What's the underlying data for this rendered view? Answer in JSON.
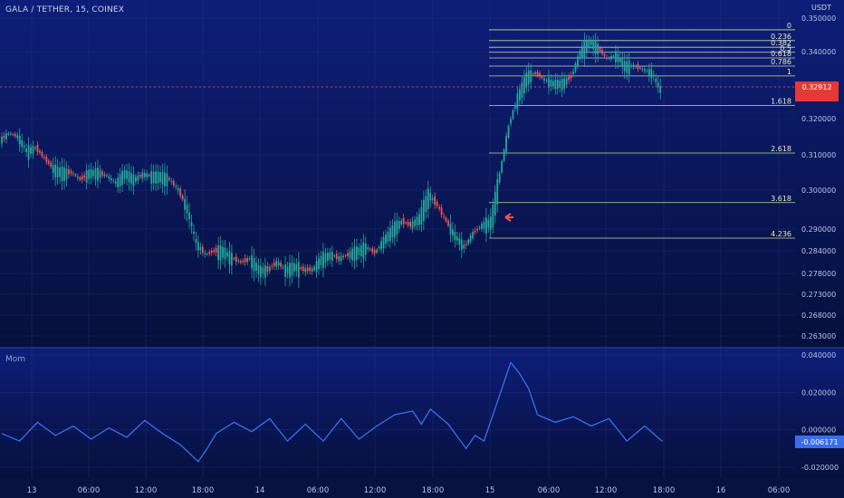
{
  "header": {
    "symbol_line": "GALA / TETHER, 15, COINEX",
    "currency": "USDT"
  },
  "indicator": {
    "name": "Mom"
  },
  "colors": {
    "bg_top": "#0e1e78",
    "bg_bottom": "#06103c",
    "up": "#26a69a",
    "down": "#ef5350",
    "fib": "#c8d8a0",
    "mom_line": "#3b6fe8",
    "mom_badge": "#3a6ee8",
    "price_badge": "#e53935"
  },
  "current_price_label": "0.32912",
  "momentum_value_label": "-0.006171",
  "chart_data": {
    "type": "candlestick",
    "title": "GALA / TETHER, 15, COINEX",
    "ylabel": "USDT",
    "y_axis_ticks": [
      "0.350000",
      "0.340000",
      "0.330000",
      "0.320000",
      "0.310000",
      "0.300000",
      "0.290000",
      "0.284000",
      "0.278000",
      "0.273000",
      "0.268000",
      "0.263000"
    ],
    "y_axis_values": [
      0.35,
      0.34,
      0.33,
      0.32,
      0.31,
      0.3,
      0.29,
      0.284,
      0.278,
      0.273,
      0.268,
      0.263
    ],
    "x_axis_ticks": [
      "13",
      "06:00",
      "12:00",
      "18:00",
      "14",
      "06:00",
      "12:00",
      "18:00",
      "15",
      "06:00",
      "12:00",
      "18:00",
      "16",
      "06:00"
    ],
    "fib_levels": [
      {
        "label": "0",
        "price": 0.3465
      },
      {
        "label": "0.236",
        "price": 0.3433
      },
      {
        "label": "0.382",
        "price": 0.3413
      },
      {
        "label": "0.5",
        "price": 0.3398
      },
      {
        "label": "0.618",
        "price": 0.3382
      },
      {
        "label": "0.786",
        "price": 0.3359
      },
      {
        "label": "1",
        "price": 0.3331
      },
      {
        "label": "1.618",
        "price": 0.3241
      },
      {
        "label": "2.618",
        "price": 0.3105
      },
      {
        "label": "3.618",
        "price": 0.2968
      },
      {
        "label": "4.236",
        "price": 0.2875
      }
    ],
    "price_path": [
      [
        0,
        0.314
      ],
      [
        4,
        0.316
      ],
      [
        8,
        0.315
      ],
      [
        12,
        0.311
      ],
      [
        16,
        0.312
      ],
      [
        20,
        0.309
      ],
      [
        24,
        0.306
      ],
      [
        28,
        0.305
      ],
      [
        32,
        0.305
      ],
      [
        36,
        0.303
      ],
      [
        40,
        0.305
      ],
      [
        44,
        0.305
      ],
      [
        48,
        0.304
      ],
      [
        52,
        0.302
      ],
      [
        56,
        0.305
      ],
      [
        60,
        0.303
      ],
      [
        64,
        0.3045
      ],
      [
        68,
        0.304
      ],
      [
        72,
        0.304
      ],
      [
        76,
        0.303
      ],
      [
        80,
        0.3
      ],
      [
        84,
        0.295
      ],
      [
        88,
        0.286
      ],
      [
        92,
        0.283
      ],
      [
        96,
        0.284
      ],
      [
        100,
        0.284
      ],
      [
        104,
        0.282
      ],
      [
        108,
        0.281
      ],
      [
        112,
        0.282
      ],
      [
        116,
        0.279
      ],
      [
        120,
        0.279
      ],
      [
        124,
        0.281
      ],
      [
        128,
        0.279
      ],
      [
        132,
        0.28
      ],
      [
        136,
        0.279
      ],
      [
        140,
        0.279
      ],
      [
        144,
        0.282
      ],
      [
        148,
        0.283
      ],
      [
        152,
        0.282
      ],
      [
        156,
        0.283
      ],
      [
        160,
        0.284
      ],
      [
        164,
        0.285
      ],
      [
        168,
        0.2835
      ],
      [
        172,
        0.287
      ],
      [
        176,
        0.29
      ],
      [
        180,
        0.292
      ],
      [
        184,
        0.291
      ],
      [
        188,
        0.293
      ],
      [
        192,
        0.299
      ],
      [
        196,
        0.296
      ],
      [
        200,
        0.292
      ],
      [
        204,
        0.288
      ],
      [
        208,
        0.285
      ],
      [
        212,
        0.289
      ],
      [
        216,
        0.291
      ],
      [
        220,
        0.292
      ],
      [
        224,
        0.305
      ],
      [
        228,
        0.318
      ],
      [
        232,
        0.327
      ],
      [
        236,
        0.333
      ],
      [
        240,
        0.334
      ],
      [
        244,
        0.332
      ],
      [
        248,
        0.331
      ],
      [
        252,
        0.331
      ],
      [
        256,
        0.333
      ],
      [
        260,
        0.34
      ],
      [
        264,
        0.343
      ],
      [
        268,
        0.341
      ],
      [
        272,
        0.338
      ],
      [
        276,
        0.339
      ],
      [
        280,
        0.336
      ],
      [
        284,
        0.336
      ],
      [
        288,
        0.335
      ],
      [
        292,
        0.334
      ],
      [
        296,
        0.329
      ]
    ],
    "momentum_ticks": [
      "0.040000",
      "0.020000",
      "0.000000",
      "-0.020000"
    ],
    "momentum_tick_values": [
      0.04,
      0.02,
      0.0,
      -0.02
    ],
    "momentum_path": [
      [
        0,
        -0.002
      ],
      [
        8,
        -0.006
      ],
      [
        16,
        0.004
      ],
      [
        24,
        -0.003
      ],
      [
        32,
        0.002
      ],
      [
        40,
        -0.005
      ],
      [
        48,
        0.001
      ],
      [
        56,
        -0.004
      ],
      [
        64,
        0.005
      ],
      [
        72,
        -0.002
      ],
      [
        80,
        -0.008
      ],
      [
        88,
        -0.017
      ],
      [
        92,
        -0.01
      ],
      [
        96,
        -0.002
      ],
      [
        104,
        0.004
      ],
      [
        112,
        -0.001
      ],
      [
        120,
        0.006
      ],
      [
        128,
        -0.006
      ],
      [
        136,
        0.003
      ],
      [
        144,
        -0.006
      ],
      [
        152,
        0.006
      ],
      [
        160,
        -0.005
      ],
      [
        168,
        0.002
      ],
      [
        176,
        0.008
      ],
      [
        184,
        0.01
      ],
      [
        188,
        0.003
      ],
      [
        192,
        0.011
      ],
      [
        200,
        0.003
      ],
      [
        208,
        -0.01
      ],
      [
        212,
        -0.003
      ],
      [
        216,
        -0.006
      ],
      [
        220,
        0.008
      ],
      [
        224,
        0.022
      ],
      [
        228,
        0.036
      ],
      [
        232,
        0.03
      ],
      [
        236,
        0.022
      ],
      [
        240,
        0.008
      ],
      [
        248,
        0.004
      ],
      [
        256,
        0.007
      ],
      [
        264,
        0.002
      ],
      [
        272,
        0.006
      ],
      [
        280,
        -0.006
      ],
      [
        288,
        0.002
      ],
      [
        296,
        -0.0062
      ]
    ]
  }
}
